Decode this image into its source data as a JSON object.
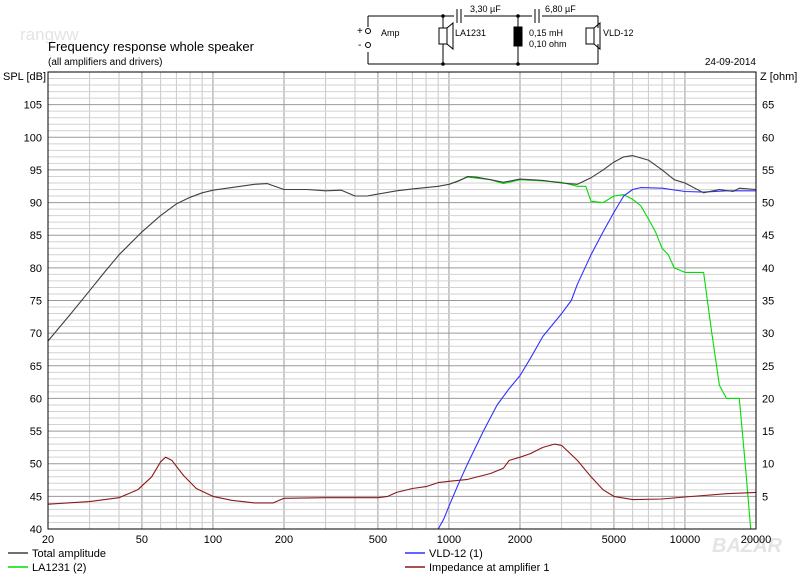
{
  "watermark_tl": "rangww",
  "watermark_br": "BAZAR",
  "circuit": {
    "source_label": "Amp",
    "plus_sign": "+",
    "minus_sign": "-",
    "woofer_label": "LA1231",
    "tweeter_label": "VLD-12",
    "cap1": "3,30 µF",
    "cap2": "6,80 µF",
    "inductor_line1": "0,15 mH",
    "inductor_line2": "0,10 ohm"
  },
  "chart_data": {
    "type": "line",
    "title": "Frequency response whole speaker",
    "subtitle": "(all amplifiers and drivers)",
    "date": "24-09-2014",
    "ylabel": "SPL [dB]",
    "y2label": "Z [ohm]",
    "xscale": "log",
    "xlim": [
      20,
      20000
    ],
    "ylim": [
      40,
      110
    ],
    "y2lim": [
      0,
      70
    ],
    "grid": true,
    "x_ticks": [
      20,
      50,
      100,
      200,
      500,
      1000,
      2000,
      5000,
      10000,
      20000
    ],
    "x_tick_labels": [
      "20",
      "50",
      "100",
      "200",
      "500",
      "1000",
      "2000",
      "5000",
      "10000",
      "20000"
    ],
    "y_ticks": [
      40,
      45,
      50,
      55,
      60,
      65,
      70,
      75,
      80,
      85,
      90,
      95,
      100,
      105
    ],
    "y_tick_labels": [
      "40",
      "45",
      "50",
      "55",
      "60",
      "65",
      "70",
      "75",
      "80",
      "85",
      "90",
      "95",
      "100",
      "105"
    ],
    "y2_ticks": [
      5,
      10,
      15,
      20,
      25,
      30,
      35,
      40,
      45,
      50,
      55,
      60,
      65
    ],
    "y2_tick_labels": [
      "5",
      "10",
      "15",
      "20",
      "25",
      "30",
      "35",
      "40",
      "45",
      "50",
      "55",
      "60",
      "65"
    ],
    "legend": [
      {
        "label": "Total amplitude",
        "color": "#404040"
      },
      {
        "label": "VLD-12 (1)",
        "color": "#3030ff"
      },
      {
        "label": "LA1231 (2)",
        "color": "#00dd00"
      },
      {
        "label": "Impedance at amplifier 1",
        "color": "#8b1a1a"
      }
    ],
    "series": [
      {
        "name": "LA1231 (2)",
        "axis": "left",
        "color": "#00dd00",
        "points": [
          [
            1000,
            92.8
          ],
          [
            1200,
            93.9
          ],
          [
            1500,
            93.5
          ],
          [
            1700,
            92.9
          ],
          [
            2000,
            93.5
          ],
          [
            2500,
            93.3
          ],
          [
            3000,
            93.1
          ],
          [
            3500,
            92.5
          ],
          [
            3800,
            92.5
          ],
          [
            4000,
            90.2
          ],
          [
            4500,
            90
          ],
          [
            5000,
            91
          ],
          [
            5500,
            91.2
          ],
          [
            6000,
            90.5
          ],
          [
            6500,
            89.5
          ],
          [
            7000,
            87.5
          ],
          [
            7500,
            85.5
          ],
          [
            8000,
            83
          ],
          [
            8500,
            82
          ],
          [
            9000,
            80
          ],
          [
            10000,
            79.3
          ],
          [
            12000,
            79.3
          ],
          [
            13000,
            70
          ],
          [
            14000,
            62
          ],
          [
            15000,
            60
          ],
          [
            17000,
            60
          ],
          [
            18000,
            50
          ],
          [
            19000,
            40
          ]
        ]
      },
      {
        "name": "VLD-12 (1)",
        "axis": "left",
        "color": "#3030ff",
        "points": [
          [
            20,
            40
          ],
          [
            900,
            40
          ],
          [
            950,
            41.5
          ],
          [
            1000,
            43.5
          ],
          [
            1100,
            47
          ],
          [
            1200,
            50
          ],
          [
            1400,
            55
          ],
          [
            1600,
            59
          ],
          [
            1800,
            61.5
          ],
          [
            2000,
            63.5
          ],
          [
            2200,
            66
          ],
          [
            2500,
            69.5
          ],
          [
            3000,
            73
          ],
          [
            3300,
            75
          ],
          [
            3500,
            77.5
          ],
          [
            4000,
            82
          ],
          [
            4500,
            85.5
          ],
          [
            5000,
            88.5
          ],
          [
            5500,
            91
          ],
          [
            6000,
            92
          ],
          [
            6500,
            92.3
          ],
          [
            8000,
            92.2
          ],
          [
            10000,
            91.7
          ],
          [
            12000,
            91.6
          ],
          [
            15000,
            91.8
          ],
          [
            20000,
            91.8
          ]
        ]
      },
      {
        "name": "Total amplitude",
        "axis": "left",
        "color": "#404040",
        "points": [
          [
            20,
            68.8
          ],
          [
            25,
            73
          ],
          [
            30,
            76.5
          ],
          [
            35,
            79.5
          ],
          [
            40,
            82
          ],
          [
            50,
            85.5
          ],
          [
            60,
            88
          ],
          [
            70,
            89.8
          ],
          [
            80,
            90.8
          ],
          [
            90,
            91.5
          ],
          [
            100,
            91.9
          ],
          [
            120,
            92.3
          ],
          [
            150,
            92.8
          ],
          [
            170,
            92.9
          ],
          [
            200,
            92
          ],
          [
            250,
            92
          ],
          [
            300,
            91.8
          ],
          [
            350,
            91.9
          ],
          [
            400,
            91
          ],
          [
            450,
            91
          ],
          [
            500,
            91.3
          ],
          [
            600,
            91.8
          ],
          [
            700,
            92.1
          ],
          [
            800,
            92.3
          ],
          [
            900,
            92.5
          ],
          [
            1000,
            92.8
          ],
          [
            1100,
            93.3
          ],
          [
            1200,
            94
          ],
          [
            1300,
            93.9
          ],
          [
            1500,
            93.5
          ],
          [
            1700,
            93.1
          ],
          [
            2000,
            93.6
          ],
          [
            2500,
            93.4
          ],
          [
            3000,
            93
          ],
          [
            3500,
            92.8
          ],
          [
            4000,
            93.8
          ],
          [
            4500,
            95
          ],
          [
            5000,
            96.2
          ],
          [
            5500,
            97
          ],
          [
            6000,
            97.2
          ],
          [
            7000,
            96.5
          ],
          [
            8000,
            95
          ],
          [
            9000,
            93.5
          ],
          [
            10000,
            93
          ],
          [
            12000,
            91.5
          ],
          [
            14000,
            92
          ],
          [
            16000,
            91.7
          ],
          [
            17000,
            92.2
          ],
          [
            20000,
            92
          ]
        ]
      },
      {
        "name": "Impedance at amplifier 1",
        "axis": "right",
        "color": "#8b1a1a",
        "points": [
          [
            20,
            3.8
          ],
          [
            30,
            4.2
          ],
          [
            40,
            4.8
          ],
          [
            48,
            6
          ],
          [
            55,
            8
          ],
          [
            60,
            10.3
          ],
          [
            63,
            11
          ],
          [
            67,
            10.5
          ],
          [
            75,
            8.2
          ],
          [
            85,
            6.2
          ],
          [
            100,
            5
          ],
          [
            120,
            4.4
          ],
          [
            150,
            4
          ],
          [
            180,
            4
          ],
          [
            200,
            4.7
          ],
          [
            300,
            4.8
          ],
          [
            500,
            4.8
          ],
          [
            550,
            5
          ],
          [
            600,
            5.6
          ],
          [
            700,
            6.2
          ],
          [
            800,
            6.5
          ],
          [
            900,
            7.1
          ],
          [
            1000,
            7.3
          ],
          [
            1200,
            7.6
          ],
          [
            1500,
            8.5
          ],
          [
            1700,
            9.3
          ],
          [
            1800,
            10.5
          ],
          [
            2000,
            11
          ],
          [
            2200,
            11.5
          ],
          [
            2500,
            12.5
          ],
          [
            2800,
            13
          ],
          [
            3000,
            12.8
          ],
          [
            3500,
            10.5
          ],
          [
            4000,
            8
          ],
          [
            4500,
            6
          ],
          [
            5000,
            5
          ],
          [
            6000,
            4.5
          ],
          [
            8000,
            4.6
          ],
          [
            10000,
            4.9
          ],
          [
            15000,
            5.4
          ],
          [
            20000,
            5.6
          ]
        ]
      }
    ]
  }
}
